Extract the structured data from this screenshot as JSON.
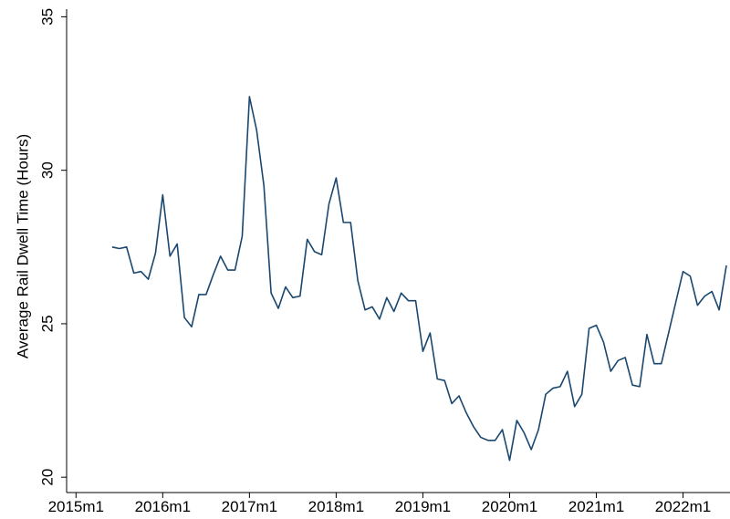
{
  "chart_data": {
    "type": "line",
    "y_label": "Average Rail Dwell Time (Hours)",
    "x": [
      665,
      666,
      667,
      668,
      669,
      670,
      671,
      672,
      673,
      674,
      675,
      676,
      677,
      678,
      679,
      680,
      681,
      682,
      683,
      684,
      685,
      686,
      687,
      688,
      689,
      690,
      691,
      692,
      693,
      694,
      695,
      696,
      697,
      698,
      699,
      700,
      701,
      702,
      703,
      704,
      705,
      706,
      707,
      708,
      709,
      710,
      711,
      712,
      713,
      714,
      715,
      716,
      717,
      718,
      719,
      720,
      721,
      722,
      723,
      724,
      725,
      726,
      727,
      728,
      729,
      730,
      731,
      732,
      733,
      734,
      735,
      736,
      737,
      738,
      739,
      740,
      741,
      742,
      743,
      744,
      745,
      746,
      747,
      748,
      749,
      750
    ],
    "series": [
      {
        "color": "#1a476f",
        "values": [
          27.5,
          27.45,
          27.5,
          26.65,
          26.7,
          26.45,
          27.3,
          29.2,
          27.2,
          27.6,
          25.2,
          24.9,
          25.95,
          25.95,
          26.6,
          27.2,
          26.75,
          26.75,
          27.85,
          32.4,
          31.3,
          29.5,
          26.0,
          25.5,
          26.2,
          25.85,
          25.9,
          27.75,
          27.35,
          27.25,
          28.9,
          29.75,
          28.3,
          28.3,
          26.4,
          25.45,
          25.55,
          25.15,
          25.85,
          25.4,
          26.0,
          25.75,
          25.75,
          24.1,
          24.7,
          23.2,
          23.15,
          22.4,
          22.65,
          22.1,
          21.65,
          21.3,
          21.2,
          21.2,
          21.55,
          20.55,
          21.85,
          21.45,
          20.9,
          21.55,
          22.7,
          22.9,
          22.95,
          23.45,
          22.3,
          22.7,
          24.85,
          24.95,
          24.4,
          23.45,
          23.8,
          23.9,
          23.0,
          22.95,
          24.65,
          23.7,
          23.7,
          24.7,
          25.7,
          26.7,
          26.55,
          25.6,
          25.9,
          26.05,
          25.45,
          26.9
        ]
      }
    ],
    "xlim": [
      658.7,
      750.5
    ],
    "xticks": [
      {
        "value": 660,
        "label": "2015m1"
      },
      {
        "value": 672,
        "label": "2016m1"
      },
      {
        "value": 684,
        "label": "2017m1"
      },
      {
        "value": 696,
        "label": "2018m1"
      },
      {
        "value": 708,
        "label": "2019m1"
      },
      {
        "value": 720,
        "label": "2020m1"
      },
      {
        "value": 732,
        "label": "2021m1"
      },
      {
        "value": 744,
        "label": "2022m1"
      }
    ],
    "ylim": [
      19.5,
      35.25
    ],
    "yticks": [
      20,
      25,
      30,
      35
    ],
    "grid": false
  }
}
